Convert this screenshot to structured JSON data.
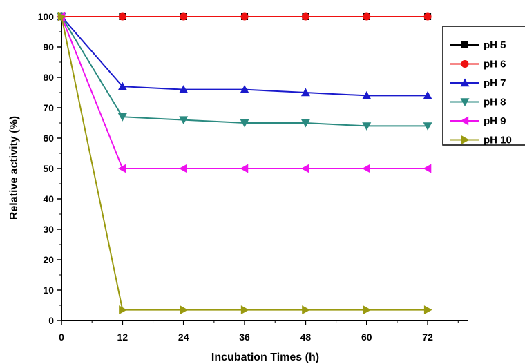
{
  "chart_data": {
    "type": "line",
    "title": "",
    "xlabel": "Incubation Times (h)",
    "ylabel": "Relative activity (%)",
    "xlim": [
      0,
      80
    ],
    "ylim": [
      0,
      100
    ],
    "x_ticks": [
      0,
      12,
      24,
      36,
      48,
      60,
      72
    ],
    "x_tick_labels": [
      "0",
      "12",
      "24",
      "36",
      "48",
      "60",
      "72"
    ],
    "y_ticks": [
      0,
      10,
      20,
      30,
      40,
      50,
      60,
      70,
      80,
      90,
      100
    ],
    "y_tick_labels": [
      "0",
      "10",
      "20",
      "30",
      "40",
      "50",
      "60",
      "70",
      "80",
      "90",
      "100"
    ],
    "grid": false,
    "legend_position": "top-right",
    "x": [
      0,
      12,
      24,
      36,
      48,
      60,
      72
    ],
    "series": [
      {
        "name": "pH 5",
        "color": "#000000",
        "marker": "square",
        "values": [
          100,
          100,
          100,
          100,
          100,
          100,
          100
        ]
      },
      {
        "name": "pH 6",
        "color": "#ee1111",
        "marker": "circle",
        "values": [
          100,
          100,
          100,
          100,
          100,
          100,
          100
        ]
      },
      {
        "name": "pH 7",
        "color": "#1a1acc",
        "marker": "triangle-up",
        "values": [
          100,
          77,
          76,
          76,
          75,
          74,
          74
        ]
      },
      {
        "name": "pH 8",
        "color": "#2a8a80",
        "marker": "triangle-down",
        "values": [
          100,
          67,
          66,
          65,
          65,
          64,
          64
        ]
      },
      {
        "name": "pH 9",
        "color": "#ee11ee",
        "marker": "triangle-left",
        "values": [
          100,
          50,
          50,
          50,
          50,
          50,
          50
        ]
      },
      {
        "name": "pH 10",
        "color": "#9a9a10",
        "marker": "triangle-right",
        "values": [
          100,
          3.5,
          3.5,
          3.5,
          3.5,
          3.5,
          3.5
        ]
      }
    ]
  }
}
